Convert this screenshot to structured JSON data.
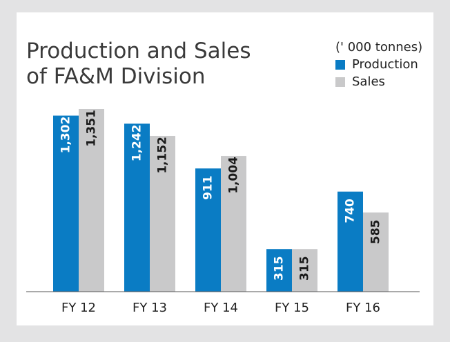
{
  "chart_data": {
    "type": "bar",
    "title_lines": [
      "Production  and  Sales",
      "of FA&M Division"
    ],
    "unit": "(' 000 tonnes)",
    "categories": [
      "FY 12",
      "FY 13",
      "FY 14",
      "FY 15",
      "FY 16"
    ],
    "series": [
      {
        "name": "Production",
        "color": "#0a7cc4",
        "values": [
          1302,
          1242,
          911,
          315,
          740
        ],
        "labels": [
          "1,302",
          "1,242",
          "911",
          "315",
          "740"
        ]
      },
      {
        "name": "Sales",
        "color": "#c9c9ca",
        "values": [
          1351,
          1152,
          1004,
          315,
          585
        ],
        "labels": [
          "1,351",
          "1,152",
          "1,004",
          "315",
          "585"
        ]
      }
    ],
    "ylim": [
      0,
      1351
    ],
    "grid": false,
    "legend_position": "top-right"
  }
}
